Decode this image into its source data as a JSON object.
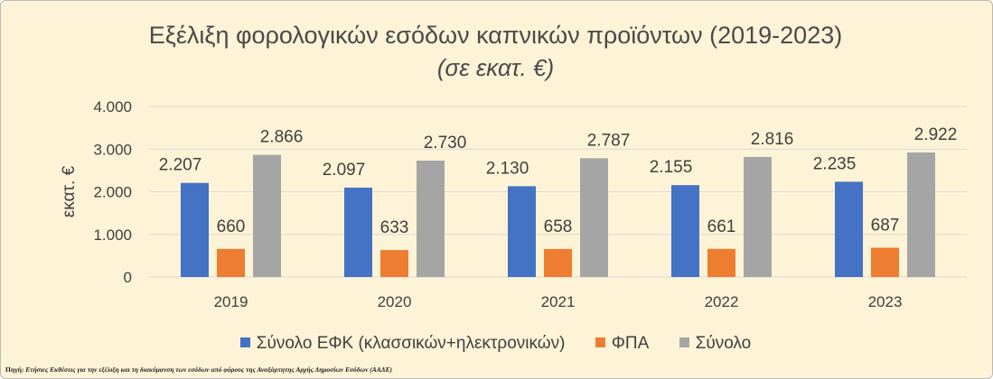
{
  "title": "Εξέλιξη φορολογικών εσόδων καπνικών προϊόντων (2019-2023)",
  "subtitle": "(σε εκατ. €)",
  "source_label": "Πηγή:",
  "source_text": "Ετήσιες Εκθέσεις για την εξέλιξη και τη διακύμανση των εσόδων από φόρους της Αναξάρτητης Αρχής Δημοσίων Εσόδων (ΑΑΔΕ)",
  "colors": {
    "efk": "#4472c4",
    "fpa": "#ed7d31",
    "total": "#a5a5a5"
  },
  "chart_data": {
    "type": "bar",
    "title": "Εξέλιξη φορολογικών εσόδων καπνικών προϊόντων (2019-2023)",
    "subtitle": "(σε εκατ. €)",
    "xlabel": "",
    "ylabel": "εκατ. €",
    "ylim": [
      0,
      4000
    ],
    "yticks": [
      "0",
      "1.000",
      "2.000",
      "3.000",
      "4.000"
    ],
    "grid": true,
    "legend_position": "bottom",
    "categories": [
      "2019",
      "2020",
      "2021",
      "2022",
      "2023"
    ],
    "series": [
      {
        "name": "Σύνολο ΕΦΚ (κλασσικών+ηλεκτρονικών)",
        "values": [
          2207,
          2097,
          2130,
          2155,
          2235
        ],
        "labels": [
          "2.207",
          "2.097",
          "2.130",
          "2.155",
          "2.235"
        ]
      },
      {
        "name": "ΦΠΑ",
        "values": [
          660,
          633,
          658,
          661,
          687
        ],
        "labels": [
          "660",
          "633",
          "658",
          "661",
          "687"
        ]
      },
      {
        "name": "Σύνολο",
        "values": [
          2866,
          2730,
          2787,
          2816,
          2922
        ],
        "labels": [
          "2.866",
          "2.730",
          "2.787",
          "2.816",
          "2.922"
        ]
      }
    ]
  }
}
